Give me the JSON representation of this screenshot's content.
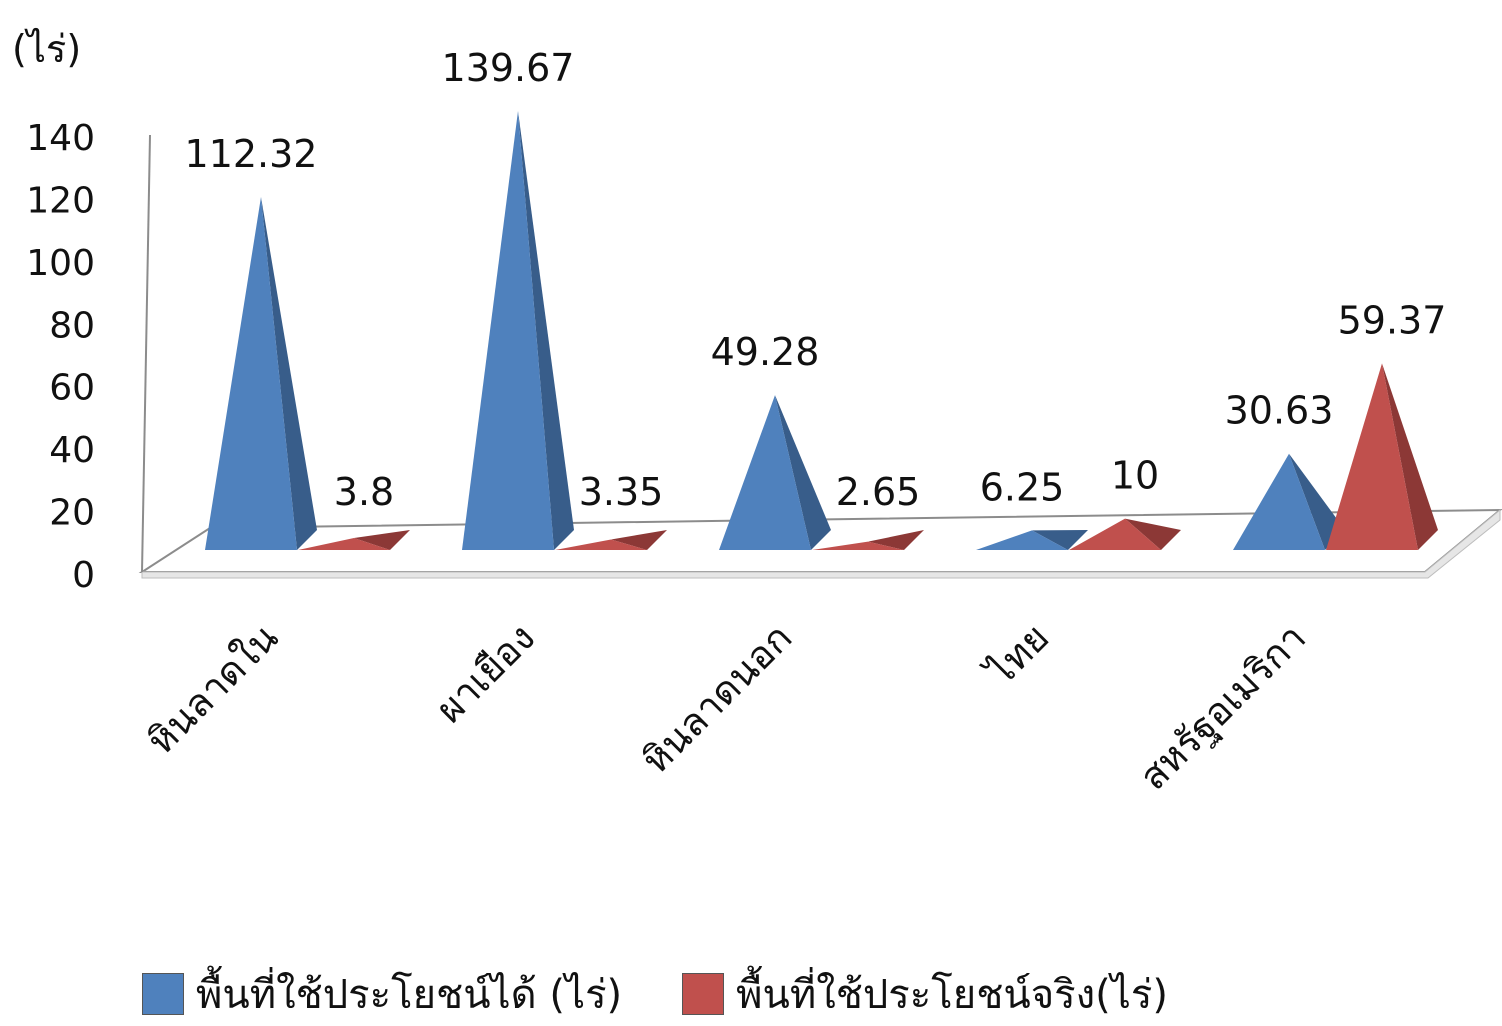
{
  "chart_data": {
    "type": "bar",
    "bar_shape": "3d-pyramid",
    "unit_label": "(ไร่)",
    "categories": [
      "หินลาดใน",
      "ผาเยือง",
      "หินลาดนอก",
      "ไทย",
      "สหรัฐอเมริกา"
    ],
    "series": [
      {
        "name": "พื้นที่ใช้ประโยชน์ได้ (ไร่)",
        "color": "#4f81bd",
        "dark": "#385d8a",
        "values": [
          112.32,
          139.67,
          49.28,
          6.25,
          30.63
        ],
        "labels": [
          "112.32",
          "139.67",
          "49.28",
          "6.25",
          "30.63"
        ]
      },
      {
        "name": "พื้นที่ใช้ประโยชน์จริง(ไร่)",
        "color": "#c0504d",
        "dark": "#8c3836",
        "values": [
          3.8,
          3.35,
          2.65,
          10,
          59.37
        ],
        "labels": [
          "3.8",
          "3.35",
          "2.65",
          "10",
          "59.37"
        ]
      }
    ],
    "yticks": [
      "0",
      "20",
      "40",
      "60",
      "80",
      "100",
      "120",
      "140"
    ],
    "ylim": [
      0,
      140
    ],
    "grid": false,
    "legend_position": "bottom"
  }
}
